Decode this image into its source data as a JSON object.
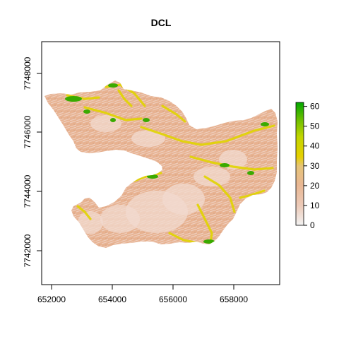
{
  "map": {
    "title": "DCL",
    "x_ticks": [
      "652000",
      "654000",
      "656000",
      "658000"
    ],
    "y_ticks": [
      "7742000",
      "7744000",
      "7746000",
      "7748000"
    ],
    "x_tick_values": [
      652000,
      654000,
      656000,
      658000
    ],
    "y_tick_values": [
      7742000,
      7744000,
      7746000,
      7748000
    ],
    "x_range": [
      651700,
      659700
    ],
    "y_range": [
      7740800,
      7749100
    ],
    "legend": {
      "ticks": [
        "0",
        "10",
        "20",
        "30",
        "40",
        "50",
        "60"
      ],
      "tick_values": [
        0,
        10,
        20,
        30,
        40,
        50,
        60
      ],
      "range": [
        0,
        62
      ],
      "colors": [
        "#f2f2f2",
        "#ebbf9f",
        "#e8c78c",
        "#e5d000",
        "#c2d500",
        "#6cbf00",
        "#00a600"
      ]
    },
    "colors": {
      "base": "#e7b291",
      "light": "#f1d9cf",
      "yellow": "#e0d400",
      "green": "#3aaa00"
    }
  }
}
